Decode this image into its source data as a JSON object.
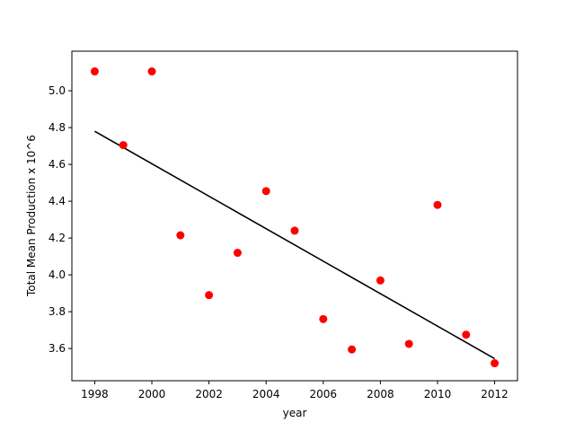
{
  "chart_data": {
    "type": "scatter",
    "title": "",
    "xlabel": "year",
    "ylabel": "Total Mean Production x 10^6",
    "xlim": [
      1997.2,
      2012.8
    ],
    "ylim": [
      3.425,
      5.215
    ],
    "x_ticks": [
      1998,
      2000,
      2002,
      2004,
      2006,
      2008,
      2010,
      2012
    ],
    "y_ticks": [
      3.6,
      3.8,
      4.0,
      4.2,
      4.4,
      4.6,
      4.8,
      5.0
    ],
    "y_tick_labels": [
      "3.6",
      "3.8",
      "4.0",
      "4.2",
      "4.4",
      "4.6",
      "4.8",
      "5.0"
    ],
    "grid": false,
    "series": [
      {
        "kind": "points",
        "color": "#ff0000",
        "x": [
          1998,
          1999,
          2000,
          2001,
          2002,
          2003,
          2004,
          2005,
          2006,
          2007,
          2008,
          2009,
          2010,
          2011,
          2012
        ],
        "y": [
          5.105,
          4.705,
          5.105,
          4.215,
          3.89,
          4.12,
          4.455,
          4.24,
          3.76,
          3.595,
          3.97,
          3.625,
          4.38,
          3.675,
          3.52
        ]
      },
      {
        "kind": "line",
        "color": "#000000",
        "x": [
          1998,
          2012
        ],
        "y": [
          4.78,
          3.545
        ]
      }
    ]
  }
}
